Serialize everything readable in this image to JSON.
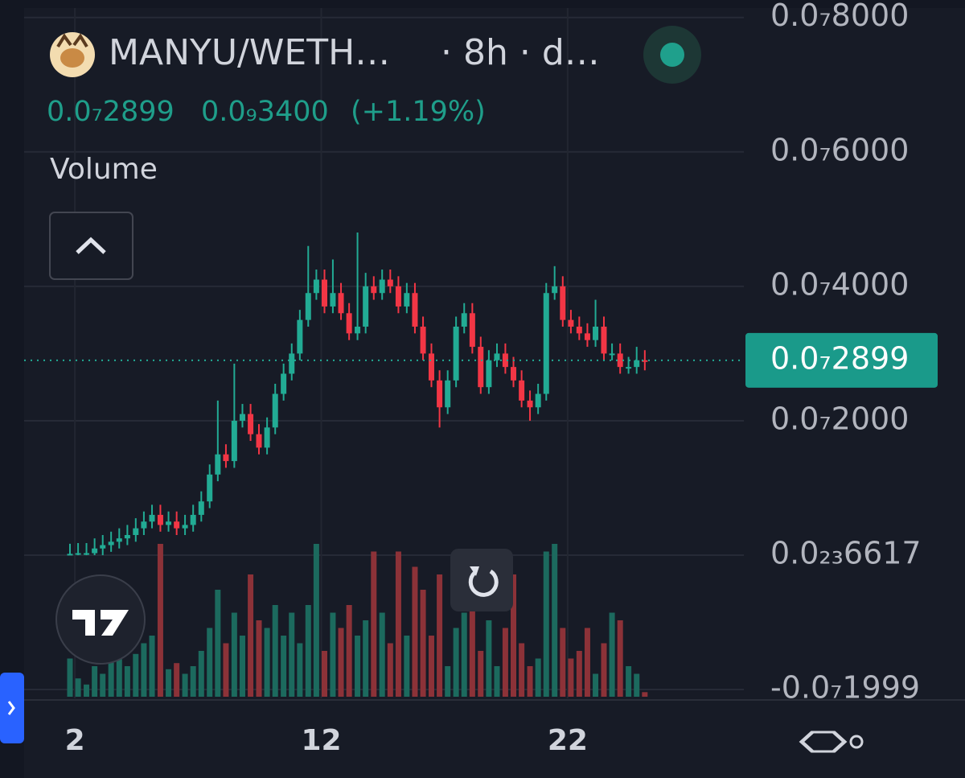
{
  "header": {
    "symbol": "MANYU/WETH…",
    "interval": "· 8h · d…",
    "change": "0.0₉3400",
    "change_pct": "(+1.19%)",
    "indicator": "Volume"
  },
  "chart_data": {
    "type": "candlestick",
    "x": [
      1.8,
      2.13,
      2.47,
      2.8,
      3.13,
      3.47,
      3.8,
      4.13,
      4.47,
      4.8,
      5.13,
      5.47,
      5.8,
      6.13,
      6.47,
      6.8,
      7.13,
      7.47,
      7.8,
      8.13,
      8.47,
      8.8,
      9.13,
      9.47,
      9.8,
      10.13,
      10.47,
      10.8,
      11.13,
      11.47,
      11.8,
      12.13,
      12.47,
      12.8,
      13.13,
      13.47,
      13.8,
      14.13,
      14.47,
      14.8,
      15.13,
      15.47,
      15.8,
      16.13,
      16.47,
      16.8,
      17.13,
      17.47,
      17.8,
      18.13,
      18.47,
      18.8,
      19.13,
      19.47,
      19.8,
      20.13,
      20.47,
      20.8,
      21.13,
      21.47,
      21.8,
      22.13,
      22.47,
      22.8,
      23.13,
      23.47,
      23.8,
      24.13,
      24.47,
      24.8,
      25.13
    ],
    "open": [
      1e-10,
      2e-10,
      3e-10,
      3e-10,
      1e-09,
      1.5e-09,
      2e-09,
      2.5e-09,
      3e-09,
      4e-09,
      5e-09,
      6e-09,
      4.5e-09,
      5e-09,
      4e-09,
      4.5e-09,
      6e-09,
      8e-09,
      1.2e-08,
      1.5e-08,
      1.4e-08,
      2e-08,
      2.1e-08,
      1.8e-08,
      1.6e-08,
      1.9e-08,
      2.4e-08,
      2.7e-08,
      3e-08,
      3.5e-08,
      3.9e-08,
      4.1e-08,
      3.7e-08,
      3.9e-08,
      3.6e-08,
      3.3e-08,
      3.4e-08,
      4e-08,
      3.9e-08,
      4.1e-08,
      4e-08,
      3.7e-08,
      3.9e-08,
      3.4e-08,
      3e-08,
      2.6e-08,
      2.2e-08,
      2.6e-08,
      3.4e-08,
      3.6e-08,
      3.1e-08,
      2.5e-08,
      2.9e-08,
      3e-08,
      2.8e-08,
      2.6e-08,
      2.3e-08,
      2.2e-08,
      2.4e-08,
      3.9e-08,
      4e-08,
      3.5e-08,
      3.4e-08,
      3.3e-08,
      3.2e-08,
      3.4e-08,
      3e-08,
      3e-08,
      2.8e-08,
      2.8e-08,
      2.9e-08
    ],
    "high": [
      1.7e-09,
      1.8e-09,
      1.8e-09,
      2.5e-09,
      3e-09,
      3.5e-09,
      4e-09,
      4.5e-09,
      5.5e-09,
      6.5e-09,
      7.5e-09,
      7.5e-09,
      6.5e-09,
      6.5e-09,
      6e-09,
      7.5e-09,
      9.5e-09,
      1.35e-08,
      2.3e-08,
      1.65e-08,
      2.85e-08,
      2.25e-08,
      2.25e-08,
      1.95e-08,
      2.05e-08,
      2.55e-08,
      2.85e-08,
      3.15e-08,
      3.65e-08,
      4.6e-08,
      4.25e-08,
      4.25e-08,
      4.4e-08,
      4.05e-08,
      3.75e-08,
      4.8e-08,
      4.2e-08,
      4.15e-08,
      4.25e-08,
      4.25e-08,
      4.15e-08,
      4.05e-08,
      4.05e-08,
      3.55e-08,
      3.15e-08,
      2.75e-08,
      2.75e-08,
      3.55e-08,
      3.75e-08,
      3.75e-08,
      3.25e-08,
      3.05e-08,
      3.15e-08,
      3.15e-08,
      2.95e-08,
      2.75e-08,
      2.45e-08,
      2.55e-08,
      4.05e-08,
      4.3e-08,
      4.15e-08,
      3.65e-08,
      3.55e-08,
      3.45e-08,
      3.8e-08,
      3.55e-08,
      3.15e-08,
      3.15e-08,
      2.95e-08,
      3.1e-08,
      3.05e-08
    ],
    "low": [
      0,
      0,
      0,
      0,
      0,
      5e-10,
      1e-09,
      1.5e-09,
      2e-09,
      3e-09,
      4e-09,
      3.5e-09,
      3.5e-09,
      3e-09,
      3e-09,
      3.5e-09,
      5e-09,
      7e-09,
      1.1e-08,
      1.3e-08,
      1.3e-08,
      1.9e-08,
      1.7e-08,
      1.5e-08,
      1.5e-08,
      1.8e-08,
      2.3e-08,
      2.6e-08,
      2.9e-08,
      3.4e-08,
      3.8e-08,
      3.6e-08,
      3.6e-08,
      3.5e-08,
      3.2e-08,
      3.2e-08,
      3.3e-08,
      3.8e-08,
      3.8e-08,
      3.9e-08,
      3.6e-08,
      3.6e-08,
      3.3e-08,
      2.9e-08,
      2.5e-08,
      1.9e-08,
      2.1e-08,
      2.5e-08,
      3.3e-08,
      3e-08,
      2.4e-08,
      2.4e-08,
      2.8e-08,
      2.7e-08,
      2.5e-08,
      2.2e-08,
      2e-08,
      2.1e-08,
      2.3e-08,
      3.8e-08,
      3.4e-08,
      3.3e-08,
      3.2e-08,
      3.1e-08,
      3.1e-08,
      2.9e-08,
      2.9e-08,
      2.7e-08,
      2.7e-08,
      2.7e-08,
      2.75e-08
    ],
    "close": [
      2e-10,
      3e-10,
      3e-10,
      1e-09,
      1.5e-09,
      2e-09,
      2.5e-09,
      3e-09,
      4e-09,
      5e-09,
      6e-09,
      4.5e-09,
      5e-09,
      4e-09,
      4.5e-09,
      6e-09,
      8e-09,
      1.2e-08,
      1.5e-08,
      1.4e-08,
      2e-08,
      2.1e-08,
      1.8e-08,
      1.6e-08,
      1.9e-08,
      2.4e-08,
      2.7e-08,
      3e-08,
      3.5e-08,
      3.9e-08,
      4.1e-08,
      3.7e-08,
      3.9e-08,
      3.6e-08,
      3.3e-08,
      3.4e-08,
      4e-08,
      3.9e-08,
      4.1e-08,
      4e-08,
      3.7e-08,
      3.9e-08,
      3.4e-08,
      3e-08,
      2.6e-08,
      2.2e-08,
      2.6e-08,
      3.4e-08,
      3.6e-08,
      3.1e-08,
      2.5e-08,
      2.9e-08,
      3e-08,
      2.8e-08,
      2.6e-08,
      2.3e-08,
      2.2e-08,
      2.4e-08,
      3.9e-08,
      4e-08,
      3.5e-08,
      3.4e-08,
      3.3e-08,
      3.2e-08,
      3.4e-08,
      3e-08,
      3e-08,
      2.8e-08,
      2.8e-08,
      2.9e-08,
      2.899e-08
    ],
    "volume": [
      25,
      12,
      8,
      20,
      15,
      25,
      30,
      20,
      28,
      35,
      40,
      100,
      18,
      22,
      15,
      20,
      30,
      45,
      70,
      35,
      55,
      40,
      80,
      50,
      45,
      60,
      40,
      55,
      35,
      60,
      100,
      30,
      55,
      45,
      60,
      40,
      50,
      95,
      55,
      35,
      95,
      40,
      85,
      70,
      40,
      80,
      20,
      45,
      55,
      95,
      30,
      50,
      20,
      45,
      80,
      35,
      20,
      25,
      95,
      100,
      45,
      25,
      30,
      45,
      15,
      35,
      55,
      50,
      20,
      15,
      3
    ],
    "up_color": "#22ab94",
    "down_color": "#f23645",
    "volume_up_color": "#1c6a5e",
    "volume_down_color": "#8c3238",
    "xlim": [
      -0.06,
      29.15
    ],
    "xticks": [
      2,
      12,
      22
    ],
    "ylim": [
      -2.13e-08,
      8.14e-08
    ],
    "yticks": [
      {
        "value": 8e-08,
        "label": "0.0₇8000"
      },
      {
        "value": 6e-08,
        "label": "0.0₇6000"
      },
      {
        "value": 4e-08,
        "label": "0.0₇4000"
      },
      {
        "value": 2e-08,
        "label": "0.0₇2000"
      },
      {
        "value": 6.617e-24,
        "label": "0.0₂₃6617"
      },
      {
        "value": -1.999e-08,
        "label": "-0.0₇1999"
      }
    ],
    "last_price": {
      "value": 2.899e-08,
      "label": "0.0₇2899"
    },
    "grid": true
  }
}
